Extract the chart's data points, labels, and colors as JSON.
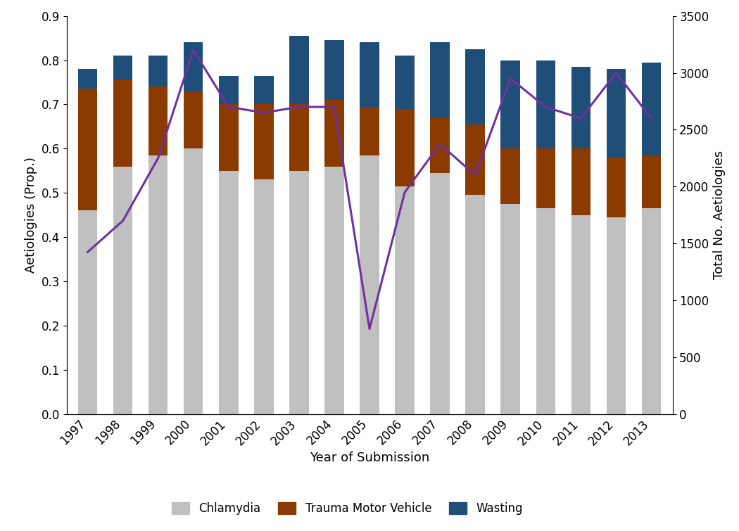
{
  "years": [
    1997,
    1998,
    1999,
    2000,
    2001,
    2002,
    2003,
    2004,
    2005,
    2006,
    2007,
    2008,
    2009,
    2010,
    2011,
    2012,
    2013
  ],
  "chlamydia": [
    0.46,
    0.56,
    0.585,
    0.6,
    0.55,
    0.53,
    0.55,
    0.56,
    0.585,
    0.515,
    0.545,
    0.495,
    0.475,
    0.465,
    0.45,
    0.445,
    0.465
  ],
  "trauma_motor": [
    0.275,
    0.195,
    0.155,
    0.13,
    0.15,
    0.17,
    0.15,
    0.15,
    0.11,
    0.175,
    0.125,
    0.16,
    0.125,
    0.135,
    0.15,
    0.135,
    0.12
  ],
  "wasting": [
    0.045,
    0.055,
    0.07,
    0.11,
    0.065,
    0.065,
    0.155,
    0.135,
    0.145,
    0.12,
    0.17,
    0.17,
    0.2,
    0.2,
    0.185,
    0.2,
    0.21
  ],
  "total_aetiologies": [
    1425,
    1700,
    2250,
    3200,
    2700,
    2650,
    2700,
    2700,
    750,
    1950,
    2375,
    2100,
    2950,
    2700,
    2600,
    3000,
    2600
  ],
  "chlamydia_color": "#c0c0c0",
  "trauma_color": "#8B3A00",
  "wasting_color": "#1F4E79",
  "line_color": "#7030A0",
  "ylabel_left": "Aetiologies (Prop.)",
  "ylabel_right": "Total No. Aetiologies",
  "xlabel": "Year of Submission",
  "ylim_left": [
    0,
    0.9
  ],
  "ylim_right": [
    0,
    3500
  ],
  "yticks_left": [
    0,
    0.1,
    0.2,
    0.3,
    0.4,
    0.5,
    0.6,
    0.7,
    0.8,
    0.9
  ],
  "yticks_right": [
    0,
    500,
    1000,
    1500,
    2000,
    2500,
    3000,
    3500
  ],
  "legend_labels": [
    "Chlamydia",
    "Trauma Motor Vehicle",
    "Wasting"
  ],
  "figsize": [
    10.5,
    7.55
  ],
  "dpi": 100
}
